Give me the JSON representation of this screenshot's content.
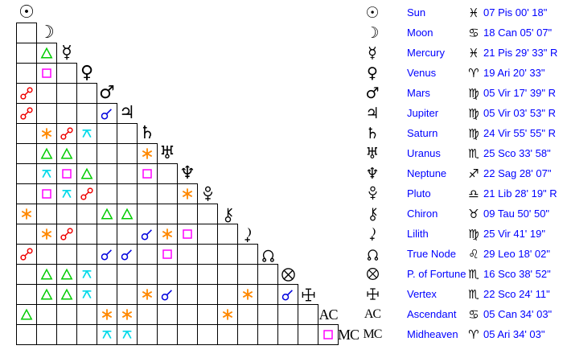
{
  "chart_data": {
    "type": "table",
    "text_color": "#0000ff",
    "aspect_colors": {
      "conjunction": "#0000dd",
      "opposition": "#ee0000",
      "square": "#ff00ff",
      "trine": "#00cc00",
      "sextile": "#ff8800",
      "quincunx": "#00d9e8"
    },
    "positions": [
      {
        "planet": "sun",
        "name": "Sun",
        "sign": "pisces",
        "position": "07 Pis 00' 18\""
      },
      {
        "planet": "moon",
        "name": "Moon",
        "sign": "cancer",
        "position": "18 Can 05' 07\""
      },
      {
        "planet": "mercury",
        "name": "Mercury",
        "sign": "pisces",
        "position": "21 Pis 29' 33\" R"
      },
      {
        "planet": "venus",
        "name": "Venus",
        "sign": "aries",
        "position": "19 Ari 20' 33\""
      },
      {
        "planet": "mars",
        "name": "Mars",
        "sign": "virgo",
        "position": "05 Vir 17' 39\" R"
      },
      {
        "planet": "jupiter",
        "name": "Jupiter",
        "sign": "virgo",
        "position": "05 Vir 03' 53\" R"
      },
      {
        "planet": "saturn",
        "name": "Saturn",
        "sign": "virgo",
        "position": "24 Vir 55' 55\" R"
      },
      {
        "planet": "uranus",
        "name": "Uranus",
        "sign": "scorpio",
        "position": "25 Sco 33' 58\""
      },
      {
        "planet": "neptune",
        "name": "Neptune",
        "sign": "sagittarius",
        "position": "22 Sag 28' 07\""
      },
      {
        "planet": "pluto",
        "name": "Pluto",
        "sign": "libra",
        "position": "21 Lib 28' 19\" R"
      },
      {
        "planet": "chiron",
        "name": "Chiron",
        "sign": "taurus",
        "position": "09 Tau 50' 50\""
      },
      {
        "planet": "lilith",
        "name": "Lilith",
        "sign": "virgo",
        "position": "25 Vir 41' 19\""
      },
      {
        "planet": "true_node",
        "name": "True Node",
        "sign": "leo",
        "position": "29 Leo 18' 02\""
      },
      {
        "planet": "fortune",
        "name": "P. of Fortune",
        "sign": "scorpio",
        "position": "16 Sco 38' 52\""
      },
      {
        "planet": "vertex",
        "name": "Vertex",
        "sign": "scorpio",
        "position": "22 Sco 24' 11\""
      },
      {
        "planet": "ascendant",
        "name": "Ascendant",
        "sign": "cancer",
        "position": "05 Can 34' 03\""
      },
      {
        "planet": "midheaven",
        "name": "Midheaven",
        "sign": "aries",
        "position": "05 Ari 34' 03\""
      }
    ],
    "aspects": [
      {
        "planet": "sun",
        "aspects": []
      },
      {
        "planet": "moon",
        "aspects": [
          null
        ]
      },
      {
        "planet": "mercury",
        "aspects": [
          null,
          "trine"
        ]
      },
      {
        "planet": "venus",
        "aspects": [
          null,
          "square",
          null
        ]
      },
      {
        "planet": "mars",
        "aspects": [
          "opposition",
          null,
          null,
          null
        ]
      },
      {
        "planet": "jupiter",
        "aspects": [
          "opposition",
          null,
          null,
          null,
          "conjunction"
        ]
      },
      {
        "planet": "saturn",
        "aspects": [
          null,
          "sextile",
          "opposition",
          "quincunx",
          null,
          null
        ]
      },
      {
        "planet": "uranus",
        "aspects": [
          null,
          "trine",
          "trine",
          null,
          null,
          null,
          "sextile"
        ]
      },
      {
        "planet": "neptune",
        "aspects": [
          null,
          "quincunx",
          "square",
          "trine",
          null,
          null,
          "square",
          null
        ]
      },
      {
        "planet": "pluto",
        "aspects": [
          null,
          "square",
          "quincunx",
          "opposition",
          null,
          null,
          null,
          null,
          "sextile"
        ]
      },
      {
        "planet": "chiron",
        "aspects": [
          "sextile",
          null,
          null,
          null,
          "trine",
          "trine",
          null,
          null,
          null,
          null
        ]
      },
      {
        "planet": "lilith",
        "aspects": [
          null,
          "sextile",
          "opposition",
          null,
          null,
          null,
          "conjunction",
          "sextile",
          "square",
          null,
          null
        ]
      },
      {
        "planet": "true_node",
        "aspects": [
          "opposition",
          null,
          null,
          null,
          "conjunction",
          "conjunction",
          null,
          "square",
          null,
          null,
          null,
          null
        ]
      },
      {
        "planet": "fortune",
        "aspects": [
          null,
          "trine",
          "trine",
          "quincunx",
          null,
          null,
          null,
          null,
          null,
          null,
          null,
          null,
          null
        ]
      },
      {
        "planet": "vertex",
        "aspects": [
          null,
          "trine",
          "trine",
          "quincunx",
          null,
          null,
          "sextile",
          "conjunction",
          null,
          null,
          null,
          "sextile",
          null,
          "conjunction"
        ]
      },
      {
        "planet": "ascendant",
        "aspects": [
          "trine",
          null,
          null,
          null,
          "sextile",
          "sextile",
          null,
          null,
          null,
          null,
          "sextile",
          null,
          null,
          null,
          null
        ]
      },
      {
        "planet": "midheaven",
        "aspects": [
          null,
          null,
          null,
          null,
          "quincunx",
          "quincunx",
          null,
          null,
          null,
          null,
          null,
          null,
          null,
          null,
          null,
          "square"
        ]
      }
    ]
  }
}
